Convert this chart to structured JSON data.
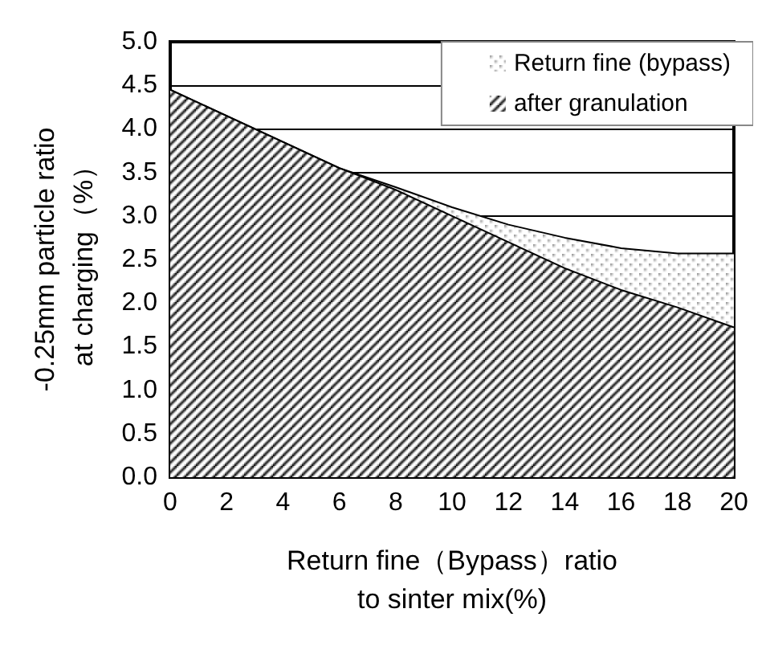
{
  "chart_data": {
    "type": "area",
    "stacked": true,
    "xlabel": "Return fine（Bypass）ratio\nto sinter mix(%)",
    "ylabel": "-0.25mm particle ratio\nat charging（%）",
    "x": [
      0,
      2,
      4,
      6,
      8,
      10,
      12,
      14,
      16,
      18,
      20
    ],
    "series": [
      {
        "name": "after granulation",
        "color": "#000000",
        "values": [
          4.45,
          4.15,
          3.85,
          3.55,
          3.3,
          3.0,
          2.7,
          2.4,
          2.15,
          1.95,
          1.72
        ]
      },
      {
        "name": "Return fine (bypass)",
        "color": "#999999",
        "values": [
          0,
          0,
          0,
          0,
          0.03,
          0.1,
          0.2,
          0.35,
          0.48,
          0.62,
          0.85
        ]
      }
    ],
    "xlim": [
      0,
      20
    ],
    "xticks": [
      0,
      2,
      4,
      6,
      8,
      10,
      12,
      14,
      16,
      18,
      20
    ],
    "ylim": [
      0,
      5
    ],
    "yticks": [
      {
        "value": 0,
        "label": "0.0"
      },
      0.5,
      {
        "value": 1,
        "label": "1.0"
      },
      1.5,
      {
        "value": 2,
        "label": "2.0"
      },
      2.5,
      {
        "value": 3,
        "label": "3.0"
      },
      3.5,
      {
        "value": 4,
        "label": "4.0"
      },
      4.5,
      {
        "value": 5,
        "label": "5.0"
      }
    ],
    "grid": "y",
    "legend": "top right"
  }
}
